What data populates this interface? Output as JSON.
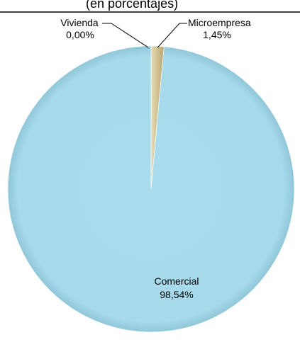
{
  "chart_data": {
    "type": "pie",
    "subtitle": "(en porcentajes)",
    "slices": [
      {
        "name": "Comercial",
        "value": 98.54,
        "value_label": "98,54%",
        "color": "#a9dcec"
      },
      {
        "name": "Vivienda",
        "value": 0.0,
        "value_label": "0,00%",
        "color": "#dcd2ad"
      },
      {
        "name": "Microempresa",
        "value": 1.45,
        "value_label": "1,45%",
        "color": "#d2c190"
      }
    ]
  }
}
